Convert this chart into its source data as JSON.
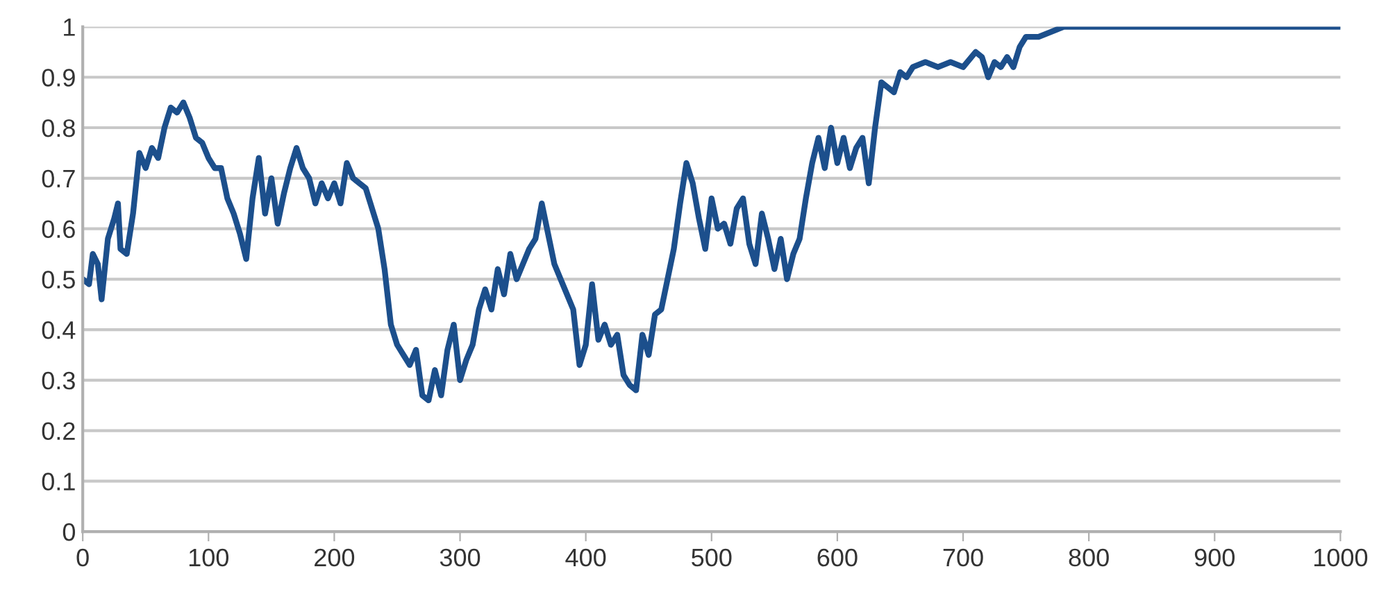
{
  "chart_data": {
    "type": "line",
    "x": [
      0,
      5,
      8,
      12,
      15,
      20,
      25,
      28,
      30,
      35,
      40,
      45,
      50,
      55,
      60,
      65,
      70,
      75,
      80,
      85,
      90,
      95,
      100,
      105,
      110,
      115,
      120,
      125,
      130,
      135,
      140,
      145,
      150,
      155,
      160,
      165,
      170,
      175,
      180,
      185,
      190,
      195,
      200,
      205,
      210,
      215,
      225,
      235,
      240,
      245,
      250,
      255,
      260,
      265,
      270,
      275,
      280,
      285,
      290,
      295,
      300,
      305,
      310,
      315,
      320,
      325,
      330,
      335,
      340,
      345,
      350,
      355,
      360,
      365,
      370,
      375,
      380,
      385,
      390,
      395,
      400,
      405,
      410,
      415,
      420,
      425,
      430,
      435,
      440,
      445,
      450,
      455,
      460,
      465,
      470,
      475,
      480,
      485,
      490,
      495,
      500,
      505,
      510,
      515,
      520,
      525,
      530,
      535,
      540,
      545,
      550,
      555,
      560,
      565,
      570,
      575,
      580,
      585,
      590,
      595,
      600,
      605,
      610,
      615,
      620,
      625,
      630,
      635,
      640,
      645,
      650,
      655,
      660,
      670,
      680,
      690,
      700,
      710,
      715,
      720,
      725,
      730,
      735,
      740,
      745,
      750,
      760,
      770,
      780,
      790,
      1000
    ],
    "series": [
      {
        "color": "#1c4f8c",
        "values": [
          0.5,
          0.49,
          0.55,
          0.53,
          0.46,
          0.58,
          0.62,
          0.65,
          0.56,
          0.55,
          0.63,
          0.75,
          0.72,
          0.76,
          0.74,
          0.8,
          0.84,
          0.83,
          0.85,
          0.82,
          0.78,
          0.77,
          0.74,
          0.72,
          0.72,
          0.66,
          0.63,
          0.59,
          0.54,
          0.66,
          0.74,
          0.63,
          0.7,
          0.61,
          0.67,
          0.72,
          0.76,
          0.72,
          0.7,
          0.65,
          0.69,
          0.66,
          0.69,
          0.65,
          0.73,
          0.7,
          0.68,
          0.6,
          0.52,
          0.41,
          0.37,
          0.35,
          0.33,
          0.36,
          0.27,
          0.26,
          0.32,
          0.27,
          0.36,
          0.41,
          0.3,
          0.34,
          0.37,
          0.44,
          0.48,
          0.44,
          0.52,
          0.47,
          0.55,
          0.5,
          0.53,
          0.56,
          0.58,
          0.65,
          0.59,
          0.53,
          0.5,
          0.47,
          0.44,
          0.33,
          0.37,
          0.49,
          0.38,
          0.41,
          0.37,
          0.39,
          0.31,
          0.29,
          0.28,
          0.39,
          0.35,
          0.43,
          0.44,
          0.5,
          0.56,
          0.65,
          0.73,
          0.69,
          0.62,
          0.56,
          0.66,
          0.6,
          0.61,
          0.57,
          0.64,
          0.66,
          0.57,
          0.53,
          0.63,
          0.58,
          0.52,
          0.58,
          0.5,
          0.55,
          0.58,
          0.66,
          0.73,
          0.78,
          0.72,
          0.8,
          0.73,
          0.78,
          0.72,
          0.76,
          0.78,
          0.69,
          0.8,
          0.89,
          0.88,
          0.87,
          0.91,
          0.9,
          0.92,
          0.93,
          0.92,
          0.93,
          0.92,
          0.95,
          0.94,
          0.9,
          0.93,
          0.92,
          0.94,
          0.92,
          0.96,
          0.98,
          0.98,
          0.99,
          1.0,
          1.0,
          1.0
        ]
      }
    ],
    "xlim": [
      0,
      1000
    ],
    "xticks": [
      0,
      100,
      200,
      300,
      400,
      500,
      600,
      700,
      800,
      900,
      1000
    ],
    "ylim": [
      0,
      1
    ],
    "yticks": [
      0,
      0.1,
      0.2,
      0.3,
      0.4,
      0.5,
      0.6,
      0.7,
      0.8,
      0.9,
      1
    ],
    "grid": "y",
    "line_style": "solid",
    "marker": "none"
  }
}
